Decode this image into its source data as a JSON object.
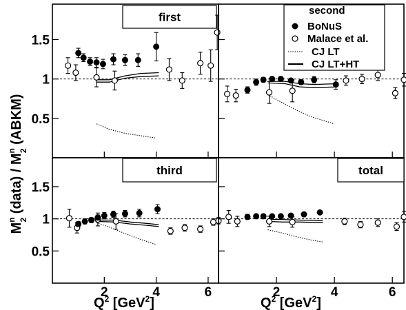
{
  "chart_data": {
    "type": "scatter",
    "xlabel_main": "Q",
    "xlabel_sup": "2",
    "xlabel_unit": " [GeV",
    "xlabel_unit_sup": "2",
    "xlabel_close": "]",
    "ylabel_parts": [
      "M",
      "n",
      "2",
      " (data) / ",
      "M",
      "n",
      "2",
      " (ABKM)"
    ],
    "xlim": [
      0,
      6.4
    ],
    "ylim": [
      0,
      1.95
    ],
    "x_ticks": [
      2,
      4,
      6
    ],
    "y_ticks": [
      0.5,
      1,
      1.5
    ],
    "x_tick_labels": [
      "2",
      "4",
      "6"
    ],
    "y_tick_labels": [
      "0.5",
      "1",
      "1.5"
    ],
    "reference_line": 1,
    "legend": {
      "title": "second",
      "placement": "top-right of panel 2",
      "entries": [
        "BoNuS",
        "Malace et al.",
        "CJ LT",
        "CJ LT+HT"
      ]
    },
    "panels": [
      {
        "title": "first",
        "bonus": [
          [
            1.0,
            1.33,
            0.06
          ],
          [
            1.2,
            1.27,
            0.05
          ],
          [
            1.45,
            1.22,
            0.05
          ],
          [
            1.7,
            1.21,
            0.06
          ],
          [
            1.95,
            1.19,
            0.06
          ],
          [
            2.35,
            1.25,
            0.07
          ],
          [
            2.8,
            1.24,
            0.07
          ],
          [
            3.3,
            1.24,
            0.08
          ],
          [
            4.0,
            1.41,
            0.18
          ]
        ],
        "malace": [
          [
            0.6,
            1.17,
            0.1
          ],
          [
            0.9,
            1.08,
            0.1
          ],
          [
            1.7,
            1.02,
            0.12
          ],
          [
            2.4,
            0.98,
            0.12
          ],
          [
            4.5,
            1.12,
            0.14
          ],
          [
            5.0,
            0.98,
            0.1
          ],
          [
            5.7,
            1.2,
            0.14
          ],
          [
            6.1,
            1.17,
            0.2
          ],
          [
            6.35,
            1.59,
            0.22
          ]
        ],
        "cj_lt": [
          [
            1.7,
            0.43
          ],
          [
            2.2,
            0.36
          ],
          [
            2.8,
            0.31
          ],
          [
            3.4,
            0.28
          ],
          [
            4.0,
            0.25
          ]
        ],
        "cj_ht_upper": [
          [
            1.7,
            0.99
          ],
          [
            2.2,
            0.99
          ],
          [
            2.8,
            1.04
          ],
          [
            3.4,
            1.07
          ],
          [
            4.1,
            1.08
          ]
        ],
        "cj_ht_lower": [
          [
            1.7,
            0.96
          ],
          [
            2.2,
            0.96
          ],
          [
            2.8,
            1.01
          ],
          [
            3.4,
            1.03
          ],
          [
            4.1,
            1.04
          ]
        ]
      },
      {
        "title": "",
        "bonus": [
          [
            1.0,
            0.86,
            0.04
          ],
          [
            1.3,
            0.96,
            0.04
          ],
          [
            1.55,
            0.99,
            0.03
          ],
          [
            1.85,
            1.0,
            0.03
          ],
          [
            2.15,
            1.0,
            0.03
          ],
          [
            2.5,
            0.98,
            0.03
          ],
          [
            2.85,
            0.96,
            0.03
          ],
          [
            3.3,
            0.99,
            0.04
          ],
          [
            4.05,
            0.93,
            0.06
          ]
        ],
        "malace": [
          [
            0.3,
            0.81,
            0.1
          ],
          [
            0.6,
            0.79,
            0.08
          ],
          [
            1.75,
            0.83,
            0.14
          ],
          [
            2.55,
            0.85,
            0.14
          ],
          [
            4.4,
            0.98,
            0.06
          ],
          [
            4.95,
            1.0,
            0.06
          ],
          [
            5.5,
            1.05,
            0.07
          ],
          [
            6.1,
            0.82,
            0.07
          ],
          [
            6.4,
            0.99,
            0.08
          ]
        ],
        "cj_lt": [
          [
            1.7,
            0.8
          ],
          [
            2.1,
            0.72
          ],
          [
            2.6,
            0.62
          ],
          [
            3.2,
            0.52
          ],
          [
            4.0,
            0.43
          ]
        ],
        "cj_ht_upper": [
          [
            1.7,
            0.97
          ],
          [
            2.3,
            0.97
          ],
          [
            2.8,
            0.94
          ],
          [
            3.3,
            0.93
          ],
          [
            4.1,
            0.94
          ]
        ],
        "cj_ht_lower": [
          [
            1.7,
            0.95
          ],
          [
            2.3,
            0.94
          ],
          [
            2.8,
            0.9
          ],
          [
            3.3,
            0.89
          ],
          [
            4.1,
            0.9
          ]
        ]
      },
      {
        "title": "third",
        "bonus": [
          [
            1.0,
            0.92,
            0.04
          ],
          [
            1.25,
            0.96,
            0.04
          ],
          [
            1.5,
            0.98,
            0.04
          ],
          [
            1.75,
            1.02,
            0.04
          ],
          [
            2.0,
            1.05,
            0.05
          ],
          [
            2.35,
            1.07,
            0.05
          ],
          [
            2.8,
            1.08,
            0.05
          ],
          [
            3.35,
            1.09,
            0.06
          ],
          [
            4.05,
            1.15,
            0.07
          ]
        ],
        "malace": [
          [
            0.65,
            1.01,
            0.14
          ],
          [
            0.95,
            0.86,
            0.08
          ],
          [
            1.75,
            0.99,
            0.1
          ],
          [
            2.45,
            0.96,
            0.12
          ],
          [
            4.55,
            0.81,
            0.05
          ],
          [
            5.1,
            0.86,
            0.05
          ],
          [
            5.7,
            0.84,
            0.05
          ],
          [
            6.2,
            0.95,
            0.05
          ],
          [
            6.4,
            0.97,
            0.05
          ]
        ],
        "cj_lt": [
          [
            1.7,
            0.94
          ],
          [
            2.2,
            0.87
          ],
          [
            2.8,
            0.77
          ],
          [
            3.4,
            0.68
          ],
          [
            4.0,
            0.6
          ]
        ],
        "cj_ht_upper": [
          [
            1.7,
            0.98
          ],
          [
            2.4,
            0.98
          ],
          [
            3.0,
            0.95
          ],
          [
            3.6,
            0.93
          ],
          [
            4.1,
            0.91
          ]
        ],
        "cj_ht_lower": [
          [
            1.7,
            0.96
          ],
          [
            2.4,
            0.95
          ],
          [
            3.0,
            0.92
          ],
          [
            3.6,
            0.9
          ],
          [
            4.1,
            0.88
          ]
        ]
      },
      {
        "title": "total",
        "bonus": [
          [
            1.0,
            1.03,
            0.04
          ],
          [
            1.3,
            1.04,
            0.03
          ],
          [
            1.55,
            1.04,
            0.03
          ],
          [
            1.85,
            1.04,
            0.03
          ],
          [
            2.15,
            1.04,
            0.03
          ],
          [
            2.5,
            1.05,
            0.03
          ],
          [
            2.95,
            1.07,
            0.03
          ],
          [
            3.5,
            1.1,
            0.03
          ]
        ],
        "malace": [
          [
            0.35,
            1.03,
            0.1
          ],
          [
            0.65,
            0.96,
            0.08
          ],
          [
            1.75,
            0.96,
            0.08
          ],
          [
            2.55,
            0.95,
            0.08
          ],
          [
            4.35,
            0.96,
            0.05
          ],
          [
            4.9,
            0.91,
            0.05
          ],
          [
            5.5,
            0.94,
            0.06
          ],
          [
            6.15,
            0.88,
            0.06
          ],
          [
            6.4,
            1.03,
            0.08
          ]
        ],
        "cj_lt": [
          [
            1.7,
            0.83
          ],
          [
            2.2,
            0.78
          ],
          [
            2.7,
            0.72
          ],
          [
            3.2,
            0.67
          ],
          [
            3.6,
            0.64
          ]
        ],
        "cj_ht_upper": [
          [
            1.7,
            0.99
          ],
          [
            2.2,
            0.99
          ],
          [
            2.8,
            0.98
          ],
          [
            3.6,
            0.97
          ]
        ],
        "cj_ht_lower": [
          [
            1.7,
            0.96
          ],
          [
            2.2,
            0.95
          ],
          [
            2.8,
            0.95
          ],
          [
            3.6,
            0.94
          ]
        ]
      }
    ]
  }
}
